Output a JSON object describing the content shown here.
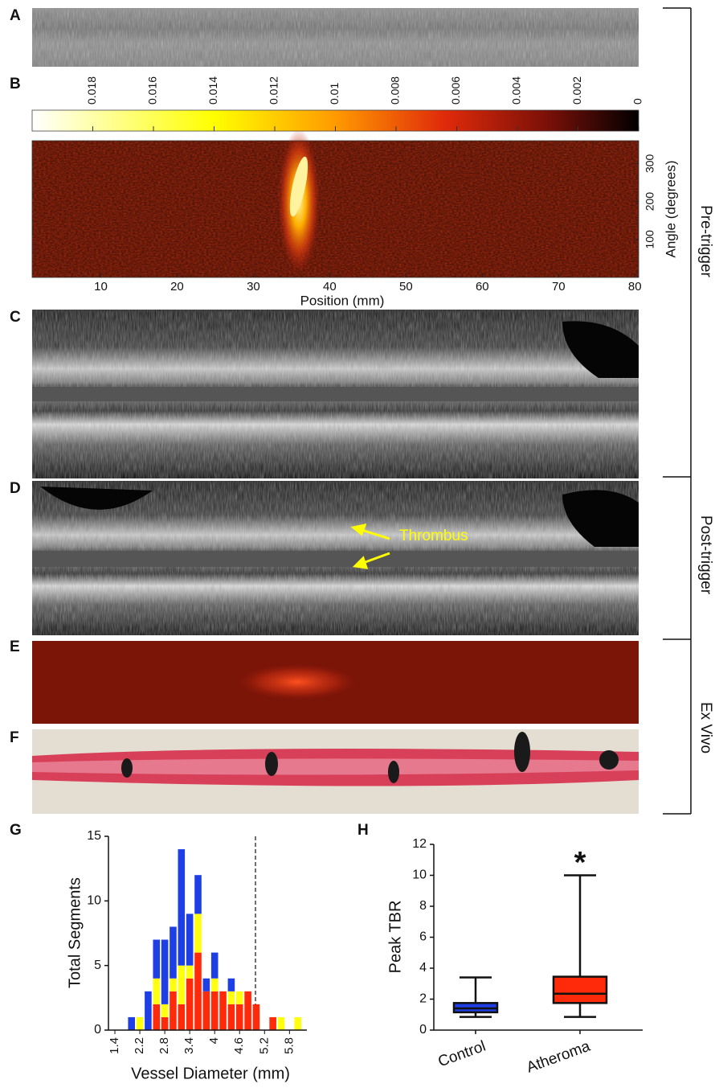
{
  "panel_labels": [
    "A",
    "B",
    "C",
    "D",
    "E",
    "F",
    "G",
    "H"
  ],
  "side_labels": [
    "Pre-trigger",
    "Post-trigger",
    "Ex Vivo"
  ],
  "annotation": "Thrombus",
  "chart_data": [
    {
      "type": "heatmap",
      "xlabel": "Position (mm)",
      "ylabel": "Angle (degrees)",
      "xlim": [
        1,
        80.5
      ],
      "xticks": [
        10,
        20,
        30,
        40,
        50,
        60,
        70,
        80
      ],
      "ylim": [
        0,
        360
      ],
      "yticks": [
        100,
        200,
        300
      ],
      "colorbar": {
        "lim": [
          0.02,
          0
        ],
        "ticks": [
          0.018,
          0.016,
          0.014,
          0.012,
          0.01,
          0.008,
          0.006,
          0.004,
          0.002,
          0
        ]
      }
    },
    {
      "type": "bar",
      "stacked": true,
      "xlabel": "Vessel Diameter (mm)",
      "ylabel": "Total Segments",
      "categories": [
        "1.4",
        null,
        null,
        "2.2",
        null,
        null,
        "2.8",
        null,
        null,
        "3.4",
        null,
        null,
        "4",
        null,
        null,
        "4.6",
        null,
        null,
        "5.2",
        null,
        null,
        "5.8",
        null
      ],
      "series": [
        {
          "color": "#ff2a0a",
          "values": [
            0,
            0,
            0,
            0,
            0,
            2,
            1,
            3,
            2,
            4,
            6,
            3,
            3,
            3,
            2,
            2,
            3,
            2,
            0,
            1,
            0,
            0,
            0
          ]
        },
        {
          "color": "#ffff10",
          "values": [
            0,
            0,
            0,
            1,
            0,
            2,
            1,
            1,
            3,
            1,
            3,
            0,
            1,
            0,
            1,
            1,
            0,
            0,
            0,
            0,
            1,
            0,
            1
          ]
        },
        {
          "color": "#1f3fe6",
          "values": [
            0,
            0,
            1,
            0,
            3,
            3,
            5,
            4,
            9,
            4,
            3,
            1,
            2,
            0,
            1,
            0,
            0,
            0,
            0,
            0,
            0,
            0,
            0
          ]
        }
      ],
      "ylim": [
        0,
        15
      ],
      "yticks": [
        0,
        5,
        10,
        15
      ]
    },
    {
      "type": "box",
      "ylabel": "Peak TBR",
      "annotation": "*",
      "categories": [
        "Control",
        "Atheroma"
      ],
      "boxes": [
        {
          "color": "#1f3fe6",
          "low": 0.85,
          "q1": 1.15,
          "median": 1.4,
          "q3": 1.75,
          "high": 3.4
        },
        {
          "color": "#ff2a0a",
          "low": 0.85,
          "q1": 1.75,
          "median": 2.35,
          "q3": 3.45,
          "high": 10
        }
      ],
      "ylim": [
        0,
        12
      ],
      "yticks": [
        0,
        2,
        4,
        6,
        8,
        10,
        12
      ]
    }
  ]
}
